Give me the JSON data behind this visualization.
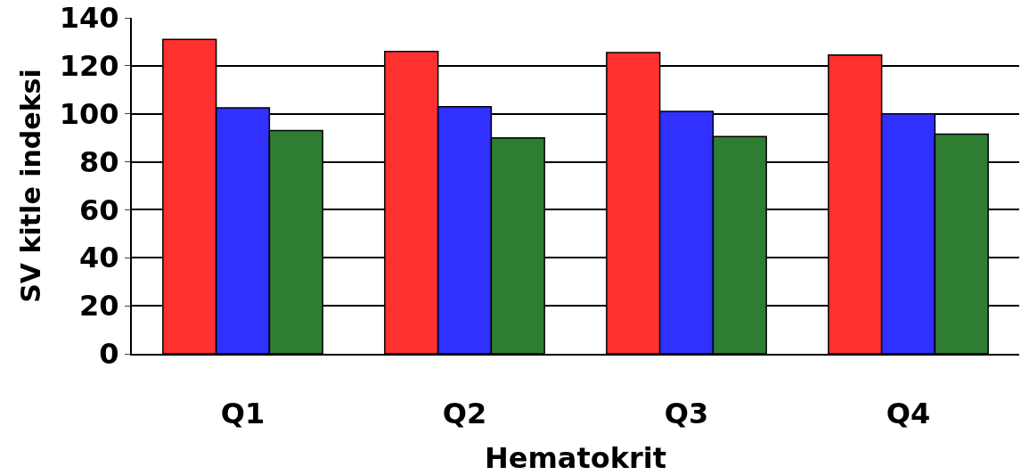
{
  "chart_data": {
    "type": "bar",
    "xlabel": "Hematokrit",
    "ylabel": "SV kitle indeksi",
    "categories": [
      "Q1",
      "Q2",
      "Q3",
      "Q4"
    ],
    "series": [
      {
        "color": "#ff3030",
        "values": [
          131,
          126,
          125.5,
          124.5
        ]
      },
      {
        "color": "#3030ff",
        "values": [
          102.5,
          103,
          101,
          100
        ]
      },
      {
        "color": "#2e7d32",
        "values": [
          93,
          90,
          90.5,
          91.5
        ]
      }
    ],
    "ylim": [
      0,
      140
    ],
    "yticks": [
      0,
      20,
      40,
      60,
      80,
      100,
      120,
      140
    ],
    "grid": "y"
  }
}
